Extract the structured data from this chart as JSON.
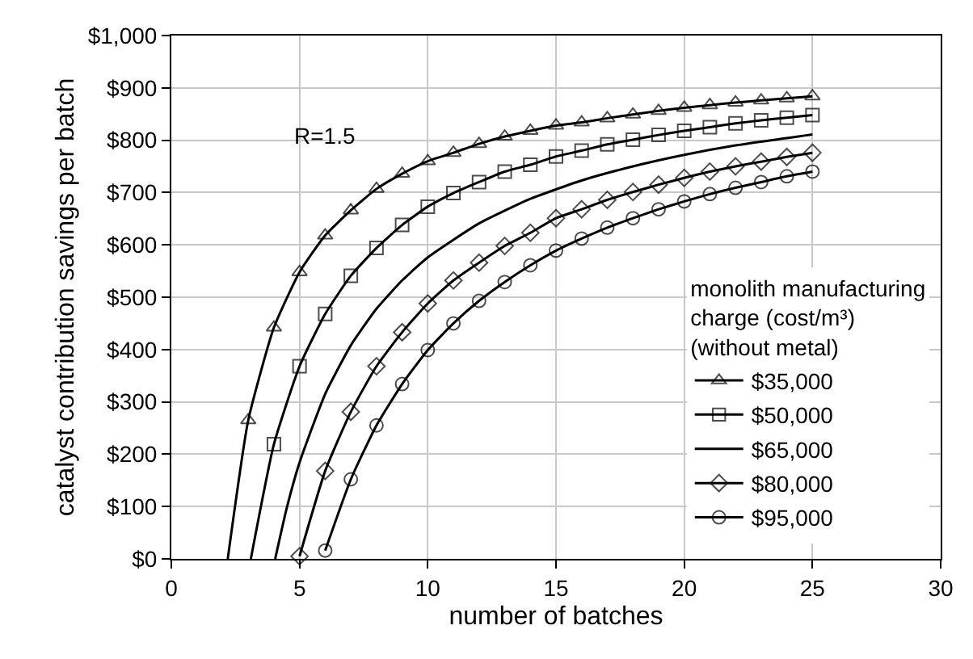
{
  "chart_data": {
    "type": "line",
    "xlabel": "number of batches",
    "ylabel": "catalyst contribution savings per batch",
    "legend_title": "monolith manufacturing\ncharge (cost/m³)\n(without metal)",
    "annotations": [
      "R=1.5"
    ],
    "xlim": [
      0,
      30
    ],
    "xticks": [
      0,
      5,
      10,
      15,
      20,
      25,
      30
    ],
    "ylim": [
      0,
      1000
    ],
    "yticks": [
      {
        "value": 0,
        "label": "$0"
      },
      {
        "value": 100,
        "label": "$100"
      },
      {
        "value": 200,
        "label": "$200"
      },
      {
        "value": 300,
        "label": "$300"
      },
      {
        "value": 400,
        "label": "$400"
      },
      {
        "value": 500,
        "label": "$500"
      },
      {
        "value": 600,
        "label": "$600"
      },
      {
        "value": 700,
        "label": "$700"
      },
      {
        "value": 800,
        "label": "$800"
      },
      {
        "value": 900,
        "label": "$900"
      },
      {
        "value": 1000,
        "label": "$1,000"
      }
    ],
    "grid": true,
    "legend": "bottom right",
    "line_style": "solid",
    "series": [
      {
        "name": "$35,000",
        "color": "#000000",
        "marker": "triangle",
        "x": [
          2.2,
          3,
          4,
          5,
          6,
          7,
          8,
          9,
          10,
          11,
          12,
          13,
          14,
          15,
          16,
          17,
          18,
          19,
          20,
          21,
          22,
          23,
          24,
          25
        ],
        "values": [
          0,
          265,
          442,
          548,
          618,
          666,
          707,
          736,
          760,
          776,
          793,
          807,
          818,
          828,
          834,
          842,
          849,
          856,
          862,
          867,
          872,
          876,
          880,
          884
        ]
      },
      {
        "name": "$50,000",
        "color": "#000000",
        "marker": "square",
        "x": [
          3.1,
          4,
          5,
          6,
          7,
          8,
          9,
          10,
          11,
          12,
          13,
          14,
          15,
          16,
          17,
          18,
          19,
          20,
          21,
          22,
          23,
          24,
          25
        ],
        "values": [
          0,
          219,
          368,
          468,
          541,
          594,
          638,
          673,
          699,
          720,
          740,
          753,
          769,
          780,
          792,
          801,
          810,
          818,
          825,
          832,
          838,
          843,
          848
        ]
      },
      {
        "name": "$65,000",
        "color": "#000000",
        "marker": "none",
        "x": [
          4.05,
          4.5,
          5,
          6,
          7,
          8,
          9,
          10,
          12,
          14,
          16,
          18,
          20,
          22,
          25
        ],
        "values": [
          0,
          97,
          184,
          315,
          408,
          478,
          532,
          576,
          641,
          688,
          723,
          750,
          772,
          790,
          811
        ]
      },
      {
        "name": "$80,000",
        "color": "#000000",
        "marker": "diamond",
        "x": [
          5,
          6,
          7,
          8,
          9,
          10,
          11,
          12,
          13,
          14,
          15,
          16,
          17,
          18,
          19,
          20,
          21,
          22,
          23,
          24,
          25
        ],
        "values": [
          5,
          168,
          281,
          368,
          433,
          488,
          532,
          566,
          598,
          623,
          651,
          668,
          686,
          701,
          715,
          728,
          740,
          750,
          759,
          768,
          776
        ]
      },
      {
        "name": "$95,000",
        "color": "#000000",
        "marker": "circle",
        "x": [
          6,
          7,
          8,
          9,
          10,
          11,
          12,
          13,
          14,
          15,
          16,
          17,
          18,
          19,
          20,
          21,
          22,
          23,
          24,
          25
        ],
        "values": [
          16,
          152,
          255,
          334,
          399,
          450,
          493,
          529,
          561,
          589,
          612,
          633,
          651,
          668,
          683,
          697,
          709,
          720,
          731,
          740
        ]
      }
    ]
  }
}
